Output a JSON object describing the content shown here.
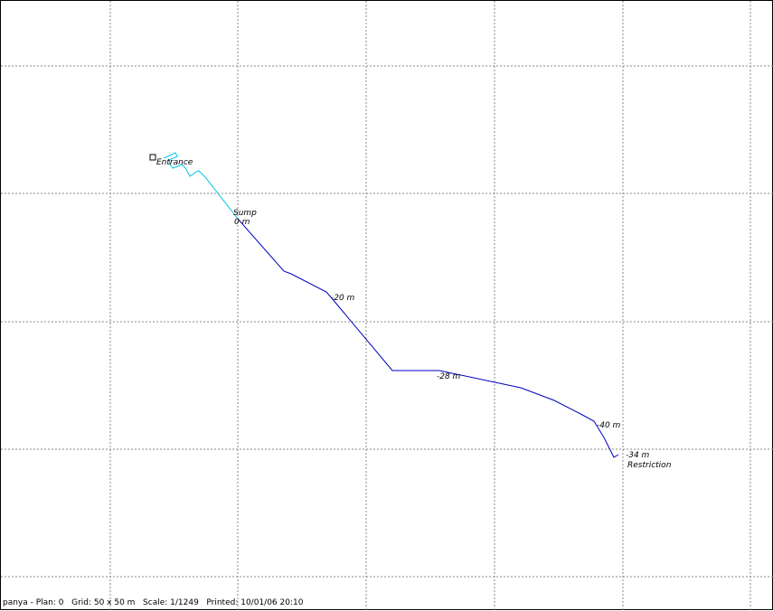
{
  "labels": {
    "entrance": "Entrance",
    "sump_name": "Sump",
    "sump_depth": "0 m",
    "depth_20": "-20 m",
    "depth_28": "-28 m",
    "depth_40": "-40 m",
    "depth_34": "-34 m",
    "restriction": "Restriction"
  },
  "footer": {
    "text": "panya - Plan: 0   Grid: 50 x 50 m   Scale: 1/1249   Printed: 10/01/06 20:10"
  },
  "colors": {
    "upper_passage": "#00c8e8",
    "lower_passage": "#0000c0",
    "grid": "#8a8a8a"
  }
}
